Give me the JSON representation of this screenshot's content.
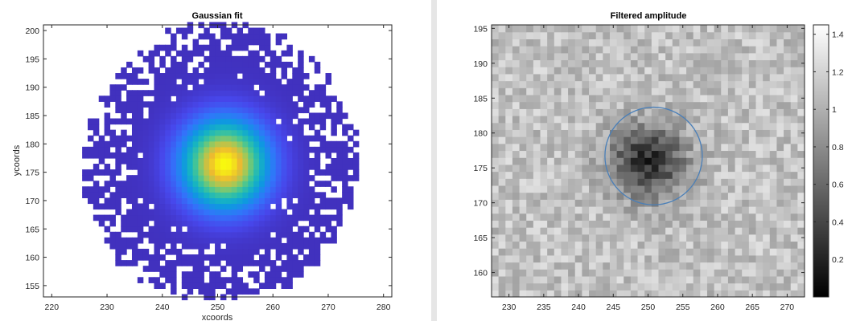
{
  "chart_data": [
    {
      "type": "heatmap",
      "title": "Gaussian fit",
      "xlabel": "xcoords",
      "ylabel": "ycoords",
      "xlim": [
        218.5,
        281.5
      ],
      "ylim": [
        153,
        201
      ],
      "xticks": [
        220,
        230,
        240,
        250,
        260,
        270,
        280
      ],
      "yticks": [
        155,
        160,
        165,
        170,
        175,
        180,
        185,
        190,
        195,
        200
      ],
      "colormap": "parula",
      "mask": {
        "shape": "circle",
        "center": [
          250.5,
          176.5
        ],
        "radius": 25,
        "holes": "sparse white pixels near the edge"
      },
      "gaussian": {
        "center": [
          251.3,
          176.5
        ],
        "sigma": 5.2,
        "peak": 1.0,
        "background": 0.04
      }
    },
    {
      "type": "heatmap",
      "title": "Filtered amplitude",
      "xlim": [
        227.5,
        272.5
      ],
      "ylim": [
        156.5,
        195.5
      ],
      "xticks": [
        230,
        235,
        240,
        245,
        250,
        255,
        260,
        265,
        270
      ],
      "yticks": [
        160,
        165,
        170,
        175,
        180,
        185,
        190,
        195
      ],
      "colormap": "gray",
      "clim": [
        0,
        1.45
      ],
      "dip": {
        "center": [
          250,
          176
        ],
        "sigma": 3.8,
        "depth": 0.85,
        "background": 1.1,
        "noise": 0.18
      },
      "ellipse": {
        "center": [
          250.8,
          176.7
        ],
        "rx": 7,
        "ry": 7,
        "color": "#4a7fb8"
      },
      "colorbar": {
        "ticks": [
          0.2,
          0.4,
          0.6,
          0.8,
          1,
          1.2,
          1.4
        ],
        "tick_labels": [
          "0.2",
          "0.4",
          "0.6",
          "0.8",
          "1",
          "1.2",
          "1.4"
        ]
      }
    }
  ]
}
